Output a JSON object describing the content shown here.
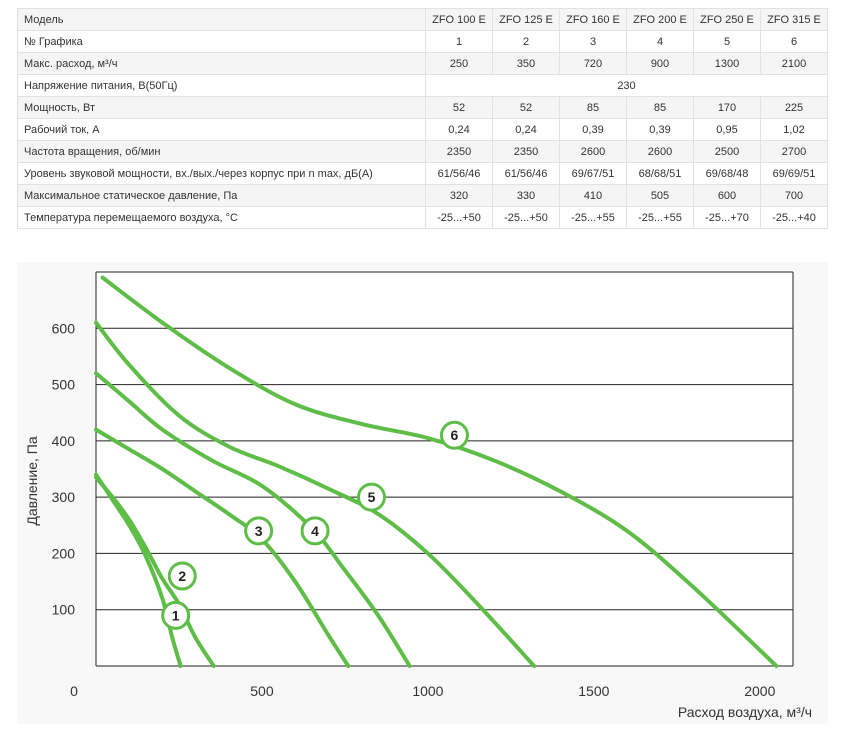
{
  "table": {
    "header_label": "Модель",
    "models": [
      "ZFO 100 E",
      "ZFO 125 E",
      "ZFO 160 E",
      "ZFO 200 E",
      "ZFO 250 E",
      "ZFO 315 E"
    ],
    "rows": [
      {
        "label": "№ Графика",
        "values": [
          "1",
          "2",
          "3",
          "4",
          "5",
          "6"
        ]
      },
      {
        "label": "Макс. расход, м³/ч",
        "values": [
          "250",
          "350",
          "720",
          "900",
          "1300",
          "2100"
        ]
      },
      {
        "label": "Напряжение питания, В(50Гц)",
        "merged": "230"
      },
      {
        "label": "Мощность, Вт",
        "values": [
          "52",
          "52",
          "85",
          "85",
          "170",
          "225"
        ]
      },
      {
        "label": "Рабочий ток, А",
        "values": [
          "0,24",
          "0,24",
          "0,39",
          "0,39",
          "0,95",
          "1,02"
        ]
      },
      {
        "label": "Частота вращения, об/мин",
        "values": [
          "2350",
          "2350",
          "2600",
          "2600",
          "2500",
          "2700"
        ]
      },
      {
        "label": "Уровень звуковой мощности, вх./вых./через корпус при n max, дБ(А)",
        "values": [
          "61/56/46",
          "61/56/46",
          "69/67/51",
          "68/68/51",
          "69/68/48",
          "69/69/51"
        ]
      },
      {
        "label": "Максимальное статическое давление, Па",
        "values": [
          "320",
          "330",
          "410",
          "505",
          "600",
          "700"
        ]
      },
      {
        "label": "Температура перемещаемого воздуха, °С",
        "values": [
          "-25...+50",
          "-25...+50",
          "-25...+55",
          "-25...+55",
          "-25...+70",
          "-25...+40"
        ]
      }
    ]
  },
  "chart_data": {
    "type": "line",
    "ylabel": "Давление, Па",
    "xlabel": "Расход воздуха, м³/ч",
    "xlim": [
      0,
      2100
    ],
    "ylim": [
      0,
      700
    ],
    "xticks": [
      {
        "v": 0,
        "label": "0"
      },
      {
        "v": 500,
        "label": "500"
      },
      {
        "v": 1000,
        "label": "1000"
      },
      {
        "v": 1500,
        "label": "1500"
      },
      {
        "v": 2000,
        "label": "2000"
      }
    ],
    "yticks": [
      {
        "v": 100,
        "label": "100"
      },
      {
        "v": 200,
        "label": "200"
      },
      {
        "v": 300,
        "label": "300"
      },
      {
        "v": 400,
        "label": "400"
      },
      {
        "v": 500,
        "label": "500"
      },
      {
        "v": 600,
        "label": "600"
      }
    ],
    "grid": true,
    "line_color": "#5ebd47",
    "series": [
      {
        "marker": "1",
        "marker_at": [
          240,
          90
        ],
        "points": [
          [
            0,
            340
          ],
          [
            50,
            295
          ],
          [
            100,
            250
          ],
          [
            150,
            195
          ],
          [
            200,
            120
          ],
          [
            230,
            50
          ],
          [
            255,
            0
          ]
        ]
      },
      {
        "marker": "2",
        "marker_at": [
          260,
          160
        ],
        "points": [
          [
            0,
            335
          ],
          [
            50,
            300
          ],
          [
            100,
            260
          ],
          [
            150,
            210
          ],
          [
            200,
            155
          ],
          [
            250,
            110
          ],
          [
            300,
            50
          ],
          [
            355,
            0
          ]
        ]
      },
      {
        "marker": "3",
        "marker_at": [
          490,
          240
        ],
        "points": [
          [
            0,
            420
          ],
          [
            100,
            385
          ],
          [
            200,
            350
          ],
          [
            300,
            310
          ],
          [
            400,
            270
          ],
          [
            500,
            225
          ],
          [
            600,
            150
          ],
          [
            700,
            55
          ],
          [
            760,
            0
          ]
        ]
      },
      {
        "marker": "4",
        "marker_at": [
          660,
          240
        ],
        "points": [
          [
            0,
            520
          ],
          [
            100,
            470
          ],
          [
            200,
            420
          ],
          [
            350,
            365
          ],
          [
            500,
            320
          ],
          [
            650,
            245
          ],
          [
            750,
            170
          ],
          [
            850,
            90
          ],
          [
            945,
            0
          ]
        ]
      },
      {
        "marker": "5",
        "marker_at": [
          830,
          300
        ],
        "points": [
          [
            0,
            610
          ],
          [
            100,
            535
          ],
          [
            250,
            445
          ],
          [
            400,
            390
          ],
          [
            550,
            355
          ],
          [
            700,
            315
          ],
          [
            850,
            270
          ],
          [
            1000,
            200
          ],
          [
            1150,
            110
          ],
          [
            1320,
            0
          ]
        ]
      },
      {
        "marker": "6",
        "marker_at": [
          1080,
          410
        ],
        "points": [
          [
            20,
            690
          ],
          [
            200,
            610
          ],
          [
            400,
            530
          ],
          [
            600,
            465
          ],
          [
            800,
            430
          ],
          [
            1000,
            405
          ],
          [
            1200,
            365
          ],
          [
            1400,
            310
          ],
          [
            1600,
            240
          ],
          [
            1800,
            140
          ],
          [
            2050,
            0
          ]
        ]
      }
    ]
  }
}
